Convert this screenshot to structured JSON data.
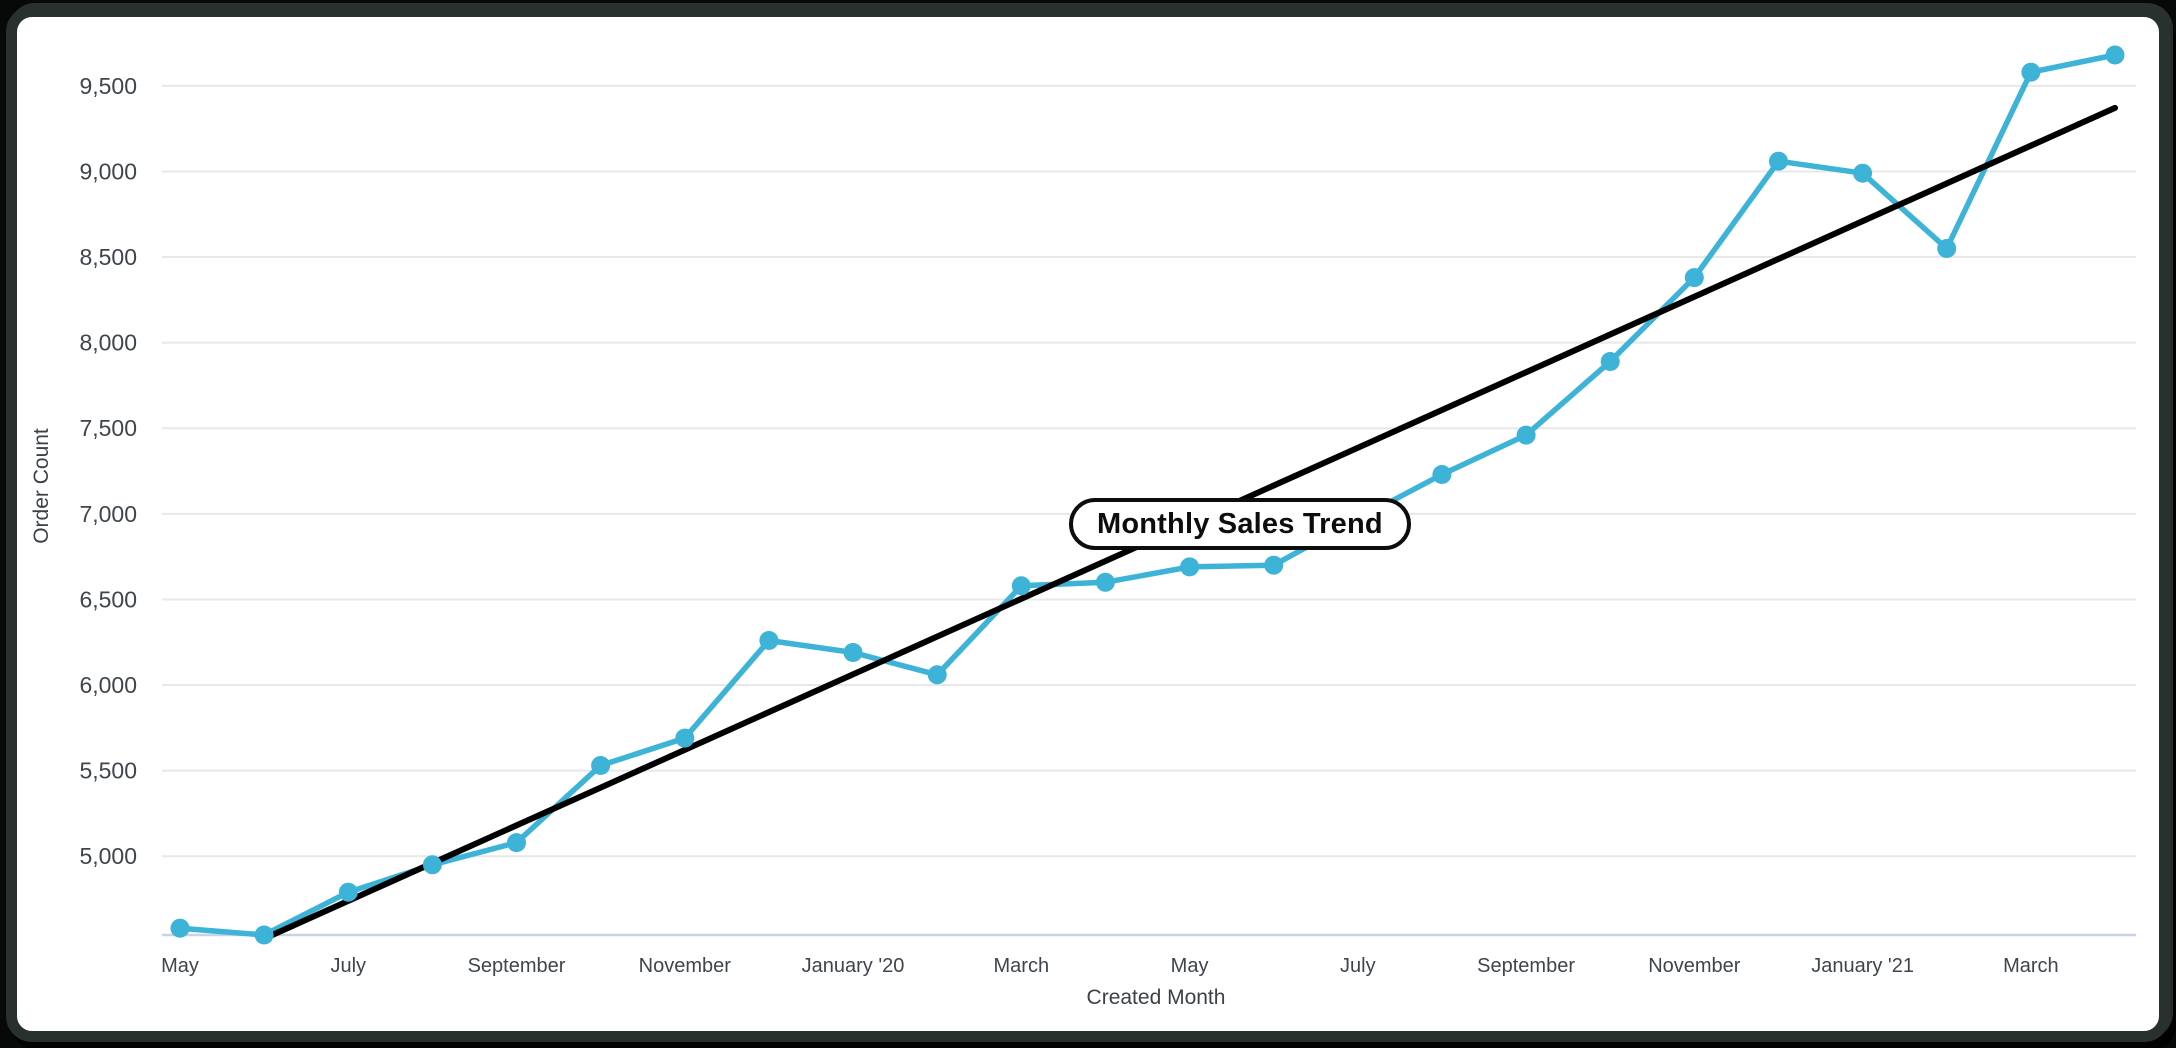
{
  "chart_data": {
    "type": "line",
    "title": "Monthly Sales Trend",
    "xlabel": "Created Month",
    "ylabel": "Order Count",
    "x": [
      "May 2019",
      "Jun 2019",
      "Jul 2019",
      "Aug 2019",
      "Sep 2019",
      "Oct 2019",
      "Nov 2019",
      "Dec 2019",
      "Jan 2020",
      "Feb 2020",
      "Mar 2020",
      "Apr 2020",
      "May 2020",
      "Jun 2020",
      "Jul 2020",
      "Aug 2020",
      "Sep 2020",
      "Oct 2020",
      "Nov 2020",
      "Dec 2020",
      "Jan 2021",
      "Feb 2021",
      "Mar 2021",
      "Apr 2021"
    ],
    "series": [
      {
        "name": "Order Count",
        "values": [
          4580,
          4540,
          4790,
          4950,
          5080,
          5530,
          5690,
          6260,
          6190,
          6060,
          6580,
          6600,
          6690,
          6700,
          6970,
          7230,
          7460,
          7890,
          8380,
          9060,
          8990,
          8550,
          9580,
          9680
        ]
      },
      {
        "name": "Linear Trendline",
        "derived": "linear-regression-of-order-count"
      }
    ],
    "yticks": [
      5000,
      5500,
      6000,
      6500,
      7000,
      7500,
      8000,
      8500,
      9000,
      9500
    ],
    "xticks": [
      {
        "index": 0,
        "label": "May"
      },
      {
        "index": 2,
        "label": "July"
      },
      {
        "index": 4,
        "label": "September"
      },
      {
        "index": 6,
        "label": "November"
      },
      {
        "index": 8,
        "label": "January '20"
      },
      {
        "index": 10,
        "label": "March"
      },
      {
        "index": 12,
        "label": "May"
      },
      {
        "index": 14,
        "label": "July"
      },
      {
        "index": 16,
        "label": "September"
      },
      {
        "index": 18,
        "label": "November"
      },
      {
        "index": 20,
        "label": "January '21"
      },
      {
        "index": 22,
        "label": "March"
      }
    ],
    "ylim": [
      4540,
      9830
    ],
    "grid": true,
    "legend_position": "none",
    "colors": {
      "series": "#3db3d8",
      "trend": "#000000",
      "grid": "#e8e8e8",
      "axis_line": "#c9d3e6",
      "tick_text": "#3f454d"
    }
  }
}
